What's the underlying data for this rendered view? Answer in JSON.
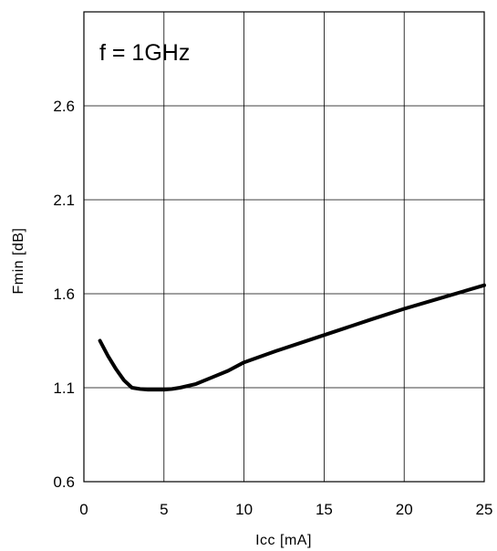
{
  "chart_data": {
    "type": "line",
    "title": "",
    "annotation": "f = 1GHz",
    "xlabel": "Icc [mA]",
    "ylabel": "Fmin [dB]",
    "xlim": [
      0,
      25
    ],
    "ylim": [
      0.6,
      3.1
    ],
    "xticks": [
      0,
      5,
      10,
      15,
      20,
      25
    ],
    "xtick_labels": [
      "0",
      "5",
      "10",
      "15",
      "20",
      "25"
    ],
    "yticks": [
      0.6,
      1.1,
      1.6,
      2.1,
      2.6
    ],
    "ytick_labels": [
      "0.6",
      "1.1",
      "1.6",
      "2.1",
      "2.6"
    ],
    "grid": true,
    "legend": "none",
    "series": [
      {
        "color": "#000000",
        "x": [
          1,
          1.5,
          2,
          2.5,
          3,
          3.5,
          4,
          5,
          5.5,
          6,
          7,
          8,
          9,
          10,
          12,
          15,
          18,
          20,
          22,
          25
        ],
        "y": [
          1.35,
          1.27,
          1.2,
          1.14,
          1.1,
          1.093,
          1.09,
          1.09,
          1.093,
          1.1,
          1.12,
          1.155,
          1.19,
          1.235,
          1.295,
          1.38,
          1.465,
          1.52,
          1.57,
          1.645
        ]
      }
    ]
  }
}
